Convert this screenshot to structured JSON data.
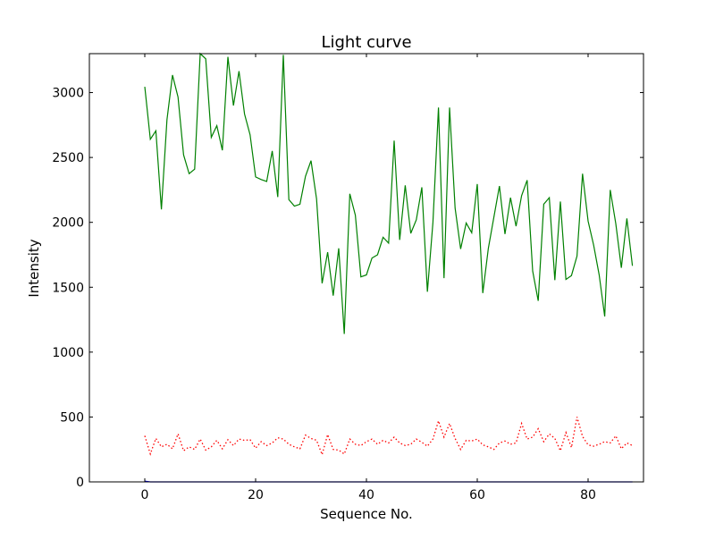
{
  "chart_data": {
    "type": "line",
    "title": "Light curve",
    "xlabel": "Sequence No.",
    "ylabel": "Intensity",
    "xlim": [
      -10,
      90
    ],
    "ylim": [
      0,
      3300
    ],
    "x_ticks": [
      0,
      20,
      40,
      60,
      80
    ],
    "y_ticks": [
      0,
      500,
      1000,
      1500,
      2000,
      2500,
      3000
    ],
    "grid": false,
    "series": [
      {
        "color": "#008000",
        "style": "solid",
        "x": [
          0,
          1,
          2,
          3,
          4,
          5,
          6,
          7,
          8,
          9,
          10,
          11,
          12,
          13,
          14,
          15,
          16,
          17,
          18,
          19,
          20,
          21,
          22,
          23,
          24,
          25,
          26,
          27,
          28,
          29,
          30,
          31,
          32,
          33,
          34,
          35,
          36,
          37,
          38,
          39,
          40,
          41,
          42,
          43,
          44,
          45,
          46,
          47,
          48,
          49,
          50,
          51,
          52,
          53,
          54,
          55,
          56,
          57,
          58,
          59,
          60,
          61,
          62,
          63,
          64,
          65,
          66,
          67,
          68,
          69,
          70,
          71,
          72,
          73,
          74,
          75,
          76,
          77,
          78,
          79,
          80,
          81,
          82,
          83,
          84,
          85,
          86,
          87,
          88
        ],
        "values": [
          3045,
          2640,
          2705,
          2100,
          2790,
          3135,
          2965,
          2520,
          2375,
          2410,
          3300,
          3260,
          2655,
          2745,
          2555,
          3275,
          2900,
          3165,
          2835,
          2675,
          2350,
          2330,
          2315,
          2550,
          2195,
          3290,
          2175,
          2125,
          2140,
          2355,
          2475,
          2180,
          1530,
          1770,
          1435,
          1800,
          1140,
          2220,
          2055,
          1580,
          1595,
          1725,
          1750,
          1885,
          1840,
          2630,
          1865,
          2285,
          1915,
          2020,
          2270,
          1465,
          2000,
          2885,
          1570,
          2885,
          2110,
          1795,
          1995,
          1920,
          2295,
          1455,
          1800,
          2040,
          2280,
          1910,
          2190,
          1970,
          2205,
          2325,
          1625,
          1395,
          2140,
          2190,
          1555,
          2160,
          1560,
          1590,
          1740,
          2375,
          2010,
          1825,
          1595,
          1275,
          2250,
          1990,
          1650,
          2030,
          1665
        ]
      },
      {
        "color": "#ff0000",
        "style": "dotted",
        "x": [
          0,
          1,
          2,
          3,
          4,
          5,
          6,
          7,
          8,
          9,
          10,
          11,
          12,
          13,
          14,
          15,
          16,
          17,
          18,
          19,
          20,
          21,
          22,
          23,
          24,
          25,
          26,
          27,
          28,
          29,
          30,
          31,
          32,
          33,
          34,
          35,
          36,
          37,
          38,
          39,
          40,
          41,
          42,
          43,
          44,
          45,
          46,
          47,
          48,
          49,
          50,
          51,
          52,
          53,
          54,
          55,
          56,
          57,
          58,
          59,
          60,
          61,
          62,
          63,
          64,
          65,
          66,
          67,
          68,
          69,
          70,
          71,
          72,
          73,
          74,
          75,
          76,
          77,
          78,
          79,
          80,
          81,
          82,
          83,
          84,
          85,
          86,
          87,
          88
        ],
        "values": [
          355,
          215,
          335,
          270,
          290,
          255,
          370,
          240,
          270,
          250,
          330,
          245,
          270,
          320,
          255,
          325,
          280,
          330,
          320,
          325,
          260,
          310,
          280,
          300,
          340,
          330,
          290,
          270,
          255,
          360,
          335,
          320,
          210,
          365,
          250,
          245,
          215,
          330,
          290,
          280,
          310,
          330,
          290,
          320,
          300,
          345,
          300,
          280,
          290,
          330,
          305,
          275,
          330,
          470,
          345,
          450,
          335,
          250,
          320,
          315,
          330,
          285,
          270,
          250,
          300,
          315,
          290,
          300,
          450,
          330,
          345,
          410,
          310,
          370,
          335,
          240,
          380,
          265,
          500,
          350,
          285,
          275,
          290,
          310,
          300,
          355,
          255,
          300,
          280
        ]
      },
      {
        "color": "#0000ff",
        "style": "solid",
        "x": [
          0,
          1,
          2,
          3,
          4,
          5,
          6,
          7,
          8,
          9,
          10,
          11,
          12,
          13,
          14,
          15,
          16,
          17,
          18,
          19,
          20,
          21,
          22,
          23,
          24,
          25,
          26,
          27,
          28,
          29,
          30,
          31,
          32,
          33,
          34,
          35,
          36,
          37,
          38,
          39,
          40,
          41,
          42,
          43,
          44,
          45,
          46,
          47,
          48,
          49,
          50,
          51,
          52,
          53,
          54,
          55,
          56,
          57,
          58,
          59,
          60,
          61,
          62,
          63,
          64,
          65,
          66,
          67,
          68,
          69,
          70,
          71,
          72,
          73,
          74,
          75,
          76,
          77,
          78,
          79,
          80,
          81,
          82,
          83,
          84,
          85,
          86,
          87,
          88
        ],
        "values": [
          5,
          0,
          0,
          0,
          0,
          0,
          0,
          0,
          0,
          0,
          0,
          0,
          0,
          0,
          0,
          0,
          0,
          0,
          0,
          0,
          0,
          0,
          0,
          0,
          0,
          0,
          0,
          0,
          0,
          0,
          0,
          0,
          0,
          0,
          0,
          0,
          0,
          0,
          0,
          0,
          0,
          0,
          0,
          0,
          0,
          0,
          0,
          0,
          0,
          0,
          0,
          0,
          0,
          0,
          0,
          0,
          0,
          0,
          0,
          0,
          0,
          0,
          0,
          0,
          0,
          0,
          0,
          0,
          0,
          0,
          0,
          0,
          0,
          0,
          0,
          0,
          0,
          0,
          0,
          0,
          0,
          0,
          0,
          0,
          0,
          0,
          0,
          0,
          0
        ]
      }
    ]
  }
}
